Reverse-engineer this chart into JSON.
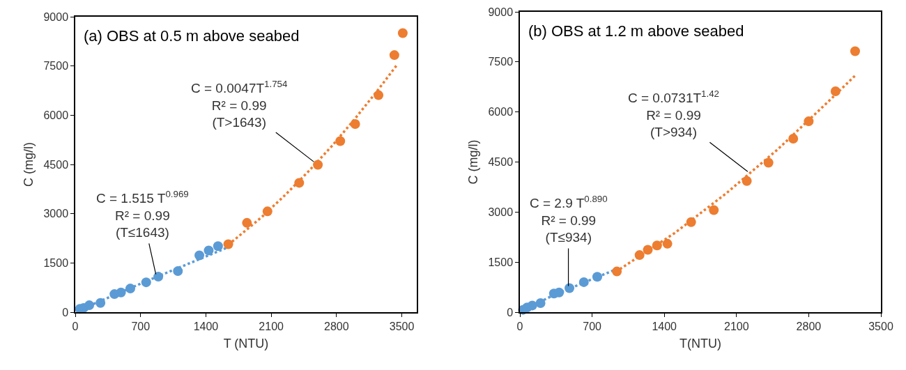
{
  "chart_data": [
    {
      "type": "scatter",
      "title": "(a) OBS at 0.5 m above seabed",
      "xlabel": "T (NTU)",
      "ylabel": "C (mg/l)",
      "xlim": [
        0,
        3660
      ],
      "ylim": [
        0,
        9000
      ],
      "xticks": [
        0,
        700,
        1400,
        2100,
        2800,
        3500
      ],
      "yticks": [
        0,
        1500,
        3000,
        4500,
        6000,
        7500,
        9000
      ],
      "grid": false,
      "marker": "circle",
      "series": [
        {
          "type": "scatter",
          "color": "#5b9bd5",
          "x": [
            50,
            90,
            150,
            270,
            420,
            490,
            590,
            760,
            890,
            1100,
            1330,
            1430,
            1530
          ],
          "values": [
            100,
            130,
            210,
            280,
            550,
            600,
            720,
            910,
            1080,
            1250,
            1730,
            1880,
            2010
          ]
        },
        {
          "type": "scatter",
          "color": "#ed7d31",
          "x": [
            1640,
            1840,
            2060,
            2400,
            2600,
            2840,
            3000,
            3250,
            3420,
            3510
          ],
          "values": [
            2070,
            2720,
            3070,
            3940,
            4490,
            5210,
            5730,
            6610,
            7830,
            8500
          ]
        },
        {
          "type": "line",
          "line_style": "dotted",
          "marker": "none",
          "color": "#5b9bd5",
          "x": [
            50,
            400,
            800,
            1200,
            1640
          ],
          "values": [
            70,
            500,
            990,
            1460,
            1980
          ]
        },
        {
          "type": "line",
          "line_style": "dotted",
          "marker": "none",
          "color": "#ed7d31",
          "x": [
            1640,
            2000,
            2250,
            2500,
            2750,
            3000,
            3250,
            3450
          ],
          "values": [
            2050,
            2900,
            3570,
            4290,
            5060,
            5900,
            6790,
            7540
          ]
        }
      ],
      "annotations": [
        {
          "text": "C = 1.515 T$^{0.969}$\nR² = 0.99\n(T≤1643)",
          "x": 870,
          "y": 1070
        },
        {
          "text": "C = 0.0047T$^{1.754}$\nR² = 0.99\n(T>1643)",
          "x": 2580,
          "y": 4530
        }
      ]
    },
    {
      "type": "scatter",
      "title": "(b) OBS at 1.2 m above seabed",
      "xlabel": "T(NTU)",
      "ylabel": "C (mg/l)",
      "xlim": [
        0,
        3500
      ],
      "ylim": [
        0,
        9000
      ],
      "xticks": [
        0,
        700,
        1400,
        2100,
        2800,
        3500
      ],
      "yticks": [
        0,
        1500,
        3000,
        4500,
        6000,
        7500,
        9000
      ],
      "grid": false,
      "marker": "circle",
      "series": [
        {
          "type": "scatter",
          "color": "#5b9bd5",
          "x": [
            30,
            70,
            120,
            200,
            330,
            380,
            480,
            620,
            750
          ],
          "values": [
            70,
            140,
            200,
            270,
            560,
            590,
            720,
            900,
            1060
          ]
        },
        {
          "type": "scatter",
          "color": "#ed7d31",
          "x": [
            940,
            1160,
            1240,
            1330,
            1430,
            1660,
            1880,
            2200,
            2410,
            2650,
            2800,
            3060,
            3250
          ],
          "values": [
            1220,
            1710,
            1870,
            2000,
            2050,
            2700,
            3060,
            3930,
            4480,
            5200,
            5720,
            6620,
            7820
          ]
        },
        {
          "type": "line",
          "line_style": "dotted",
          "marker": "none",
          "color": "#5b9bd5",
          "x": [
            20,
            300,
            600,
            930
          ],
          "values": [
            40,
            470,
            860,
            1280
          ]
        },
        {
          "type": "line",
          "line_style": "dotted",
          "marker": "none",
          "color": "#ed7d31",
          "x": [
            930,
            1500,
            2000,
            2500,
            3000,
            3250
          ],
          "values": [
            1210,
            2370,
            3560,
            4880,
            6340,
            7090
          ]
        }
      ],
      "annotations": [
        {
          "text": "C = 2.9 T$^{0.890}$\nR² = 0.99\n(T≤934)",
          "x": 470,
          "y": 700
        },
        {
          "text": "C = 0.0731T$^{1.42}$\nR² = 0.99\n(T>934)",
          "x": 2230,
          "y": 4160
        }
      ]
    }
  ]
}
